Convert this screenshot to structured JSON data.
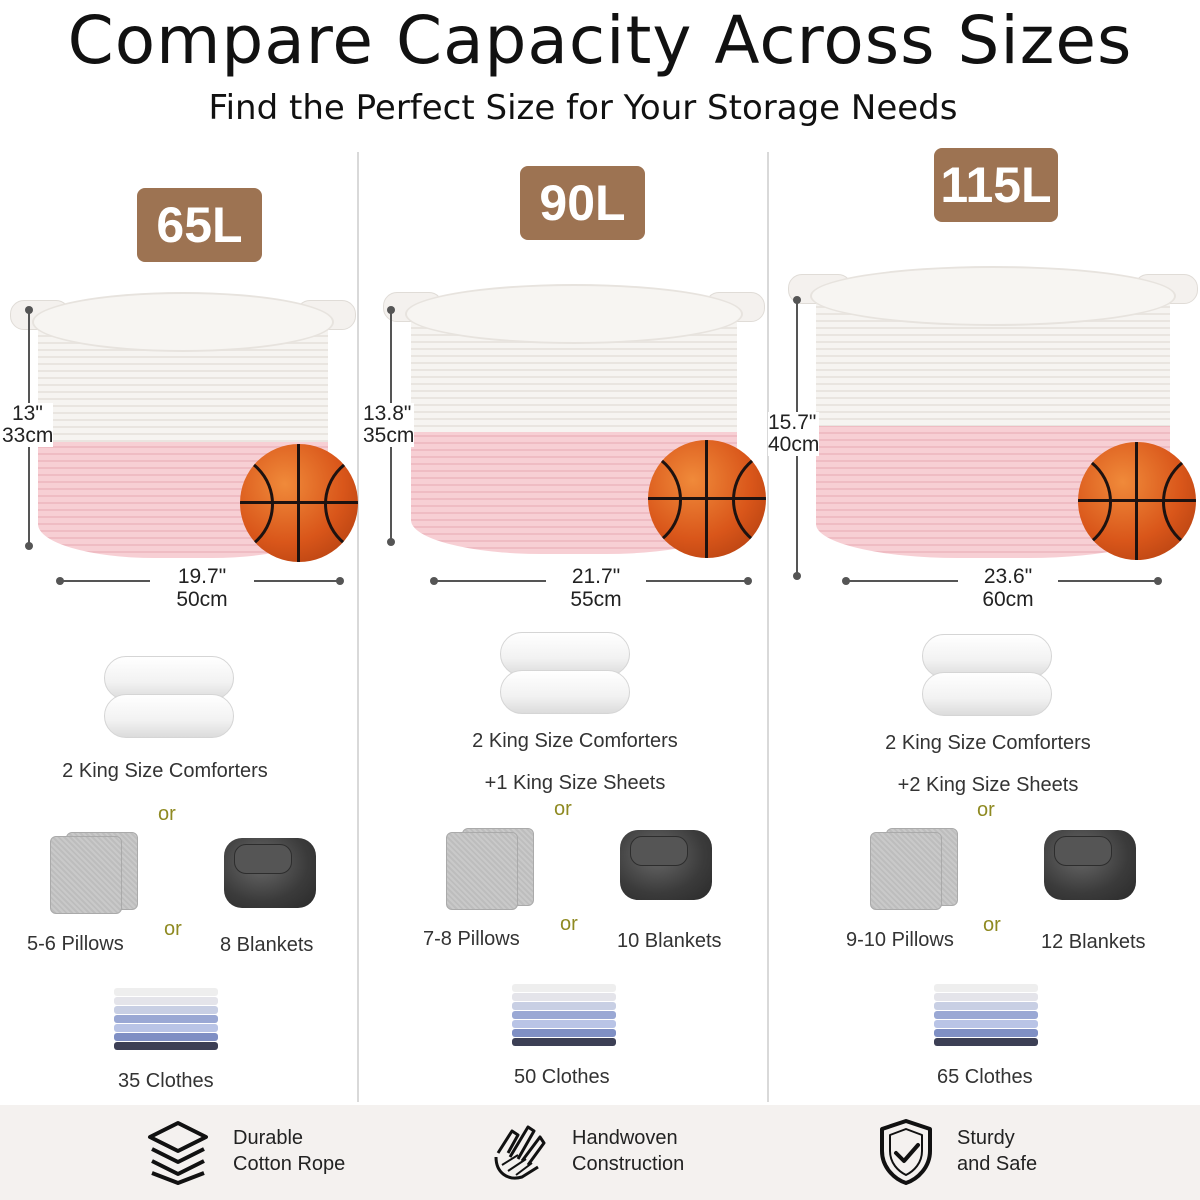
{
  "header": {
    "title": "Compare Capacity Across Sizes",
    "subtitle": "Find the Perfect Size for Your Storage Needs"
  },
  "colors": {
    "badge": "#9d7352",
    "or_text": "#8f8a22",
    "basket_white": "#f6f4f1",
    "basket_pink": "#f7cfd4",
    "footer_bg": "#f4f1ef"
  },
  "sizes": [
    {
      "capacity": "65L",
      "height_in": "13\"",
      "height_cm": "33cm",
      "width_in": "19.7\"",
      "width_cm": "50cm",
      "comforters": "2 King Size Comforters",
      "sheets": "",
      "or_1": "or",
      "or_2": "or",
      "pillows": "5-6 Pillows",
      "blankets": "8 Blankets",
      "clothes": "35 Clothes"
    },
    {
      "capacity": "90L",
      "height_in": "13.8\"",
      "height_cm": "35cm",
      "width_in": "21.7\"",
      "width_cm": "55cm",
      "comforters": "2 King Size Comforters",
      "sheets": "+1 King Size Sheets",
      "or_1": "or",
      "or_2": "or",
      "pillows": "7-8 Pillows",
      "blankets": "10 Blankets",
      "clothes": "50 Clothes"
    },
    {
      "capacity": "115L",
      "height_in": "15.7\"",
      "height_cm": "40cm",
      "width_in": "23.6\"",
      "width_cm": "60cm",
      "comforters": "2 King Size Comforters",
      "sheets": "+2 King Size Sheets",
      "or_1": "or",
      "or_2": "or",
      "pillows": "9-10 Pillows",
      "blankets": "12 Blankets",
      "clothes": "65 Clothes"
    }
  ],
  "features": [
    {
      "icon": "layers-icon",
      "line1": "Durable",
      "line2": "Cotton Rope"
    },
    {
      "icon": "weave-hands-icon",
      "line1": "Handwoven",
      "line2": "Construction"
    },
    {
      "icon": "shield-check-icon",
      "line1": "Sturdy",
      "line2": "and Safe"
    }
  ]
}
